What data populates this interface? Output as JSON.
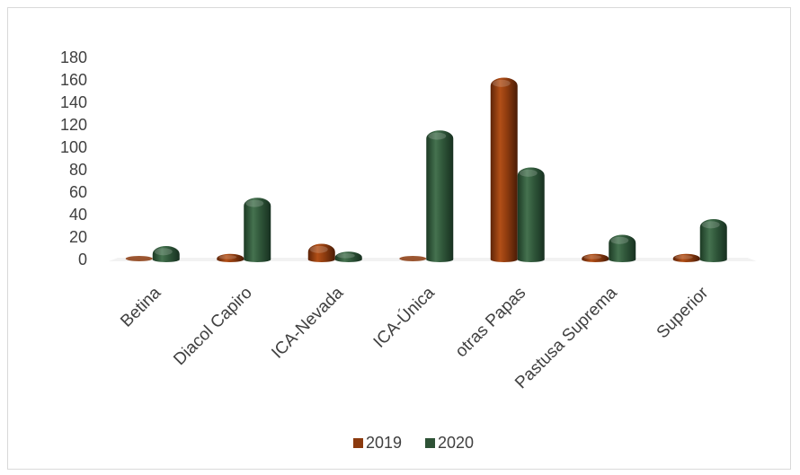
{
  "chart_data": {
    "type": "bar",
    "categories": [
      "Betina",
      "Diacol Capiro",
      "ICA-Nevada",
      "ICA-Única",
      "otras Papas",
      "Pastusa Suprema",
      "Superior"
    ],
    "series": [
      {
        "name": "2019",
        "values": [
          0,
          5,
          14,
          0,
          162,
          5,
          5
        ]
      },
      {
        "name": "2020",
        "values": [
          12,
          55,
          7,
          115,
          82,
          22,
          36
        ]
      }
    ],
    "y_ticks": [
      "0",
      "20",
      "40",
      "60",
      "80",
      "100",
      "120",
      "140",
      "160",
      "180"
    ],
    "ylim": [
      0,
      180
    ],
    "title": "",
    "xlabel": "",
    "ylabel": "",
    "legend_position": "bottom",
    "grid": false,
    "colors": {
      "2019": "#8b3a0e",
      "2020": "#2e5236"
    }
  }
}
